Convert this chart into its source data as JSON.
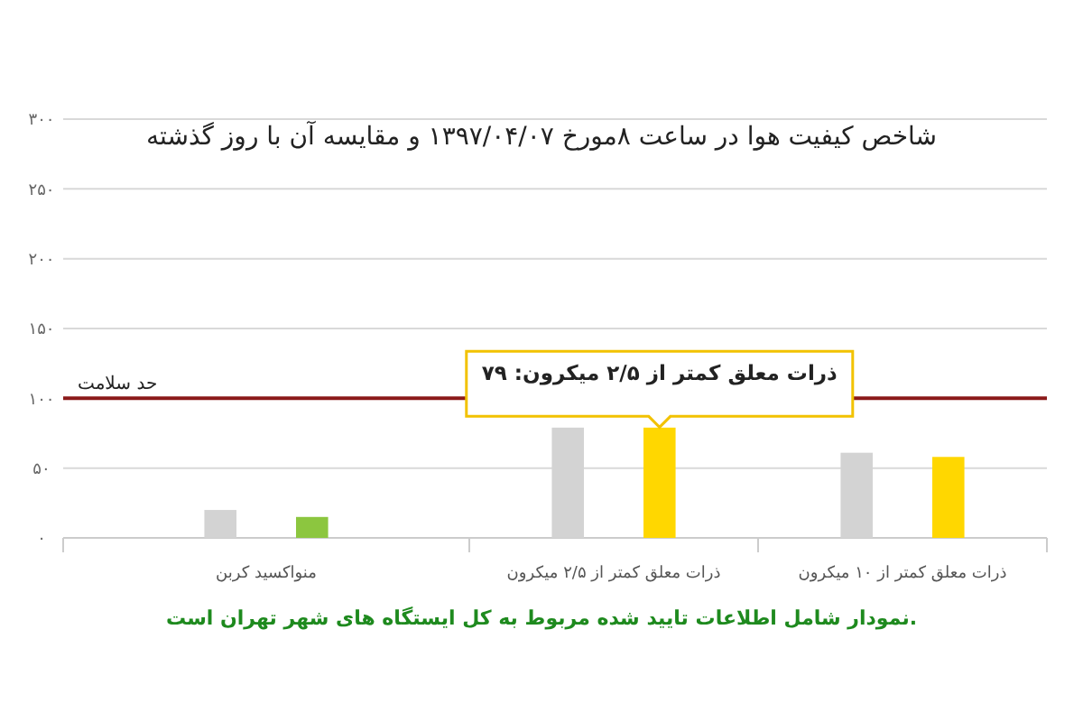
{
  "chart_data": {
    "type": "bar",
    "title": "شاخص کیفیت هوا در ساعت ۸مورخ ۱۳۹۷/۰۴/۰۷ و مقایسه آن با روز گذشته",
    "categories": [
      "منواکسید کربن",
      "ذرات معلق کمتر از ۲/۵ میکرون",
      "ذرات معلق کمتر از ۱۰ میکرون"
    ],
    "series": [
      {
        "color": "#d3d3d3",
        "values": [
          20,
          79,
          61
        ]
      },
      {
        "colors": [
          "#8cc63f",
          "#ffd700",
          "#ffd700"
        ],
        "values": [
          15,
          79,
          58
        ]
      }
    ],
    "ylim": [
      0,
      300
    ],
    "yticks": [
      {
        "value": 0,
        "label": "۰"
      },
      {
        "value": 50,
        "label": "۵۰"
      },
      {
        "value": 100,
        "label": "۱۰۰"
      },
      {
        "value": 150,
        "label": "۱۵۰"
      },
      {
        "value": 200,
        "label": "۲۰۰"
      },
      {
        "value": 250,
        "label": "۲۵۰"
      },
      {
        "value": 300,
        "label": "۳۰۰"
      }
    ],
    "grid": "y",
    "ref_lines": [
      {
        "axis": "y",
        "value": 100,
        "label": "حد سلامت",
        "color": "#8b1a1a"
      }
    ],
    "annotations": [
      "ذرات معلق کمتر از ۲/۵ میکرون: ۷۹",
      "نمودار شامل اطلاعات تایید شده مربوط به کل ایستگاه های شهر تهران است."
    ]
  }
}
